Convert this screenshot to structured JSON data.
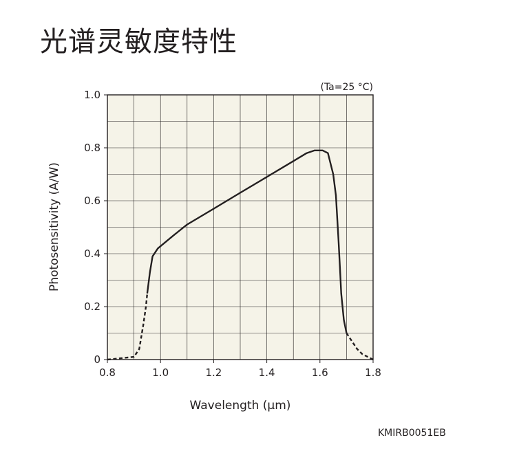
{
  "page": {
    "title": "光谱灵敏度特性",
    "figure_code": "KMIRB0051EB"
  },
  "chart_data": {
    "type": "line",
    "title": "",
    "condition": "(Ta=25 °C)",
    "xlabel": "Wavelength (μm)",
    "ylabel": "Photosensitivity (A/W)",
    "xlim": [
      0.8,
      1.8
    ],
    "ylim": [
      0,
      1.0
    ],
    "x_ticks": [
      0.8,
      1.0,
      1.2,
      1.4,
      1.6,
      1.8
    ],
    "x_tick_labels": [
      "0.8",
      "1.0",
      "1.2",
      "1.4",
      "1.6",
      "1.8"
    ],
    "y_ticks": [
      0,
      0.2,
      0.4,
      0.6,
      0.8,
      1.0
    ],
    "y_tick_labels": [
      "0",
      "0.2",
      "0.4",
      "0.6",
      "0.8",
      "1.0"
    ],
    "grid": true,
    "plot_background": "#f5f3e8",
    "line_color": "#231f20",
    "series": [
      {
        "style": "dashed",
        "x": [
          0.8,
          0.85,
          0.9,
          0.92,
          0.935,
          0.945,
          0.95
        ],
        "y": [
          0.0,
          0.005,
          0.01,
          0.04,
          0.13,
          0.2,
          0.25
        ]
      },
      {
        "style": "solid",
        "x": [
          0.95,
          0.96,
          0.97,
          0.99,
          1.05,
          1.1,
          1.15,
          1.2,
          1.3,
          1.4,
          1.5,
          1.55,
          1.58,
          1.61,
          1.63,
          1.65,
          1.66,
          1.67,
          1.675,
          1.68,
          1.69,
          1.7
        ],
        "y": [
          0.25,
          0.33,
          0.39,
          0.42,
          0.47,
          0.51,
          0.54,
          0.57,
          0.63,
          0.69,
          0.75,
          0.78,
          0.79,
          0.79,
          0.78,
          0.7,
          0.62,
          0.45,
          0.35,
          0.25,
          0.15,
          0.1
        ]
      },
      {
        "style": "dashed",
        "x": [
          1.7,
          1.72,
          1.74,
          1.76,
          1.78,
          1.8
        ],
        "y": [
          0.1,
          0.07,
          0.04,
          0.02,
          0.01,
          0.0
        ]
      }
    ]
  }
}
